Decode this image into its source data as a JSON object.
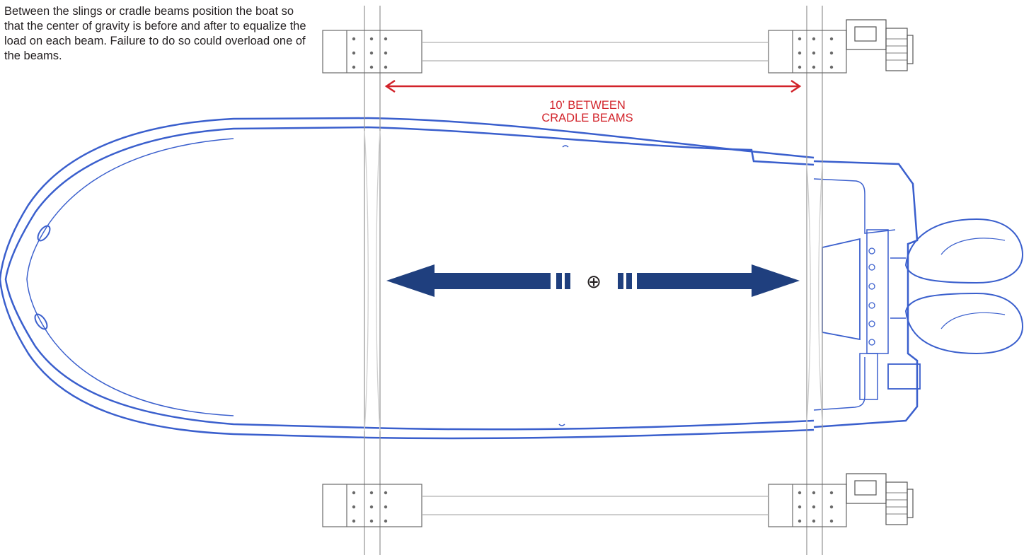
{
  "instructions": {
    "text": "Between the slings or cradle beams position the boat so that the center of gravity is before and after to equalize the load on each beam. Failure to do so could overload one of the beams."
  },
  "beam_spacing": {
    "line1": "10’ BETWEEN",
    "line2": "CRADLE BEAMS"
  },
  "center_of_gravity_symbol": "⊕",
  "colors": {
    "hull_outline": "#3a5fcd",
    "arrow": "#1f3f7e",
    "dimension": "#d2232a",
    "beam_line": "#9a9a9a",
    "text": "#231f20"
  },
  "icons": [
    "boat-hull-icon",
    "cradle-beam-icon",
    "winch-motor-icon",
    "outboard-motor-icon",
    "double-arrow-icon",
    "center-of-gravity-icon"
  ]
}
